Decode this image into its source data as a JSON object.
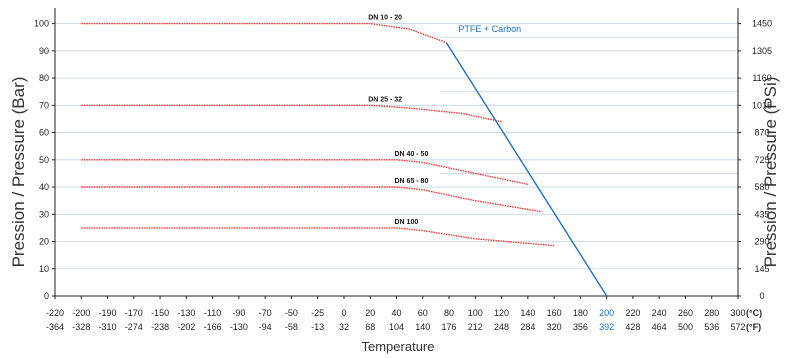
{
  "chart_data": {
    "type": "line",
    "xlabel": "Temperature",
    "ylabel_left": "Pression / Pressure (Bar)",
    "ylabel_right": "Pression / Pressure (PSi)",
    "x_unit_c": "(°C)",
    "x_unit_f": "(°F)",
    "xlim": [
      -220,
      300
    ],
    "ylim": [
      0,
      105
    ],
    "grid": true,
    "x_ticks_c": [
      "-220",
      "-200",
      "-190",
      "-170",
      "-150",
      "-130",
      "-110",
      "-90",
      "-70",
      "-50",
      "-25",
      "0",
      "20",
      "40",
      "60",
      "80",
      "100",
      "120",
      "140",
      "160",
      "180",
      "200",
      "220",
      "240",
      "260",
      "280",
      "300"
    ],
    "x_ticks_f": [
      "-364",
      "-328",
      "-310",
      "-274",
      "-238",
      "-202",
      "-166",
      "-130",
      "-94",
      "-58",
      "-13",
      "32",
      "68",
      "104",
      "140",
      "176",
      "212",
      "248",
      "284",
      "320",
      "356",
      "392",
      "428",
      "464",
      "500",
      "536",
      "572"
    ],
    "highlight_tick": "200",
    "highlight_tick_f": "392",
    "y_ticks_left": [
      "0",
      "10",
      "20",
      "30",
      "40",
      "50",
      "60",
      "70",
      "80",
      "90",
      "100"
    ],
    "y_ticks_right": [
      {
        "label": "0",
        "bar": 0
      },
      {
        "label": "145",
        "bar": 10
      },
      {
        "label": "290",
        "bar": 20
      },
      {
        "label": "435",
        "bar": 30
      },
      {
        "label": "580",
        "bar": 40
      },
      {
        "label": "725",
        "bar": 50
      },
      {
        "label": "870",
        "bar": 60
      },
      {
        "label": "1015",
        "bar": 70
      },
      {
        "label": "1160",
        "bar": 80
      },
      {
        "label": "1305",
        "bar": 90
      },
      {
        "label": "1450",
        "bar": 100
      }
    ],
    "colors": {
      "series": "#e53935",
      "limit": "#1e73be",
      "grid": "#c5d3e0",
      "axis": "#222222"
    },
    "series": [
      {
        "name": "DN 10 - 20",
        "points": [
          [
            -200,
            100
          ],
          [
            20,
            100
          ],
          [
            50,
            98
          ],
          [
            78,
            93
          ]
        ]
      },
      {
        "name": "DN 25 - 32",
        "points": [
          [
            -200,
            70
          ],
          [
            20,
            70
          ],
          [
            50,
            69
          ],
          [
            90,
            67
          ],
          [
            120,
            64
          ]
        ]
      },
      {
        "name": "DN 40 - 50",
        "points": [
          [
            -200,
            50
          ],
          [
            40,
            50
          ],
          [
            60,
            49
          ],
          [
            100,
            45
          ],
          [
            140,
            41
          ]
        ]
      },
      {
        "name": "DN 65 - 80",
        "points": [
          [
            -200,
            40
          ],
          [
            40,
            40
          ],
          [
            60,
            39
          ],
          [
            100,
            35
          ],
          [
            150,
            31
          ]
        ]
      },
      {
        "name": "DN 100",
        "points": [
          [
            -200,
            25
          ],
          [
            40,
            25
          ],
          [
            60,
            24
          ],
          [
            100,
            21
          ],
          [
            160,
            18.5
          ]
        ]
      }
    ],
    "limit_line": {
      "name": "PTFE + Carbon",
      "points": [
        [
          78,
          93
        ],
        [
          200,
          0
        ]
      ]
    },
    "ref_lines_right": [
      95,
      75,
      45
    ]
  }
}
